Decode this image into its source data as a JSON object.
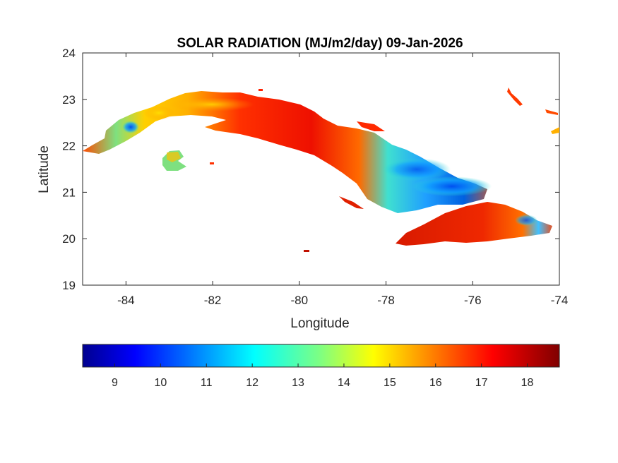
{
  "chart_data": {
    "type": "heatmap",
    "title": "SOLAR RADIATION (MJ/m2/day) 09-Jan-2026",
    "xlabel": "Longitude",
    "ylabel": "Latitude",
    "xlim": [
      -85,
      -74
    ],
    "ylim": [
      19,
      24
    ],
    "x_ticks": [
      "-84",
      "-82",
      "-80",
      "-78",
      "-76",
      "-74"
    ],
    "x_tick_values": [
      -84,
      -82,
      -80,
      -78,
      -76,
      -74
    ],
    "y_ticks": [
      "19",
      "20",
      "21",
      "22",
      "23",
      "24"
    ],
    "y_tick_values": [
      19,
      20,
      21,
      22,
      23,
      24
    ],
    "grid": false,
    "colormap": "jet",
    "colorbar": {
      "location": "bottom",
      "range": [
        8.3,
        18.7
      ],
      "ticks": [
        "9",
        "10",
        "11",
        "12",
        "13",
        "14",
        "15",
        "16",
        "17",
        "18"
      ],
      "tick_values": [
        9,
        10,
        11,
        12,
        13,
        14,
        15,
        16,
        17,
        18
      ]
    },
    "regions": [
      {
        "lon": -84.35,
        "lat": 22.45,
        "value": 11.8
      },
      {
        "lon": -84.1,
        "lat": 22.3,
        "value": 14.5
      },
      {
        "lon": -83.5,
        "lat": 22.7,
        "value": 14.0
      },
      {
        "lon": -82.9,
        "lat": 22.85,
        "value": 15.8
      },
      {
        "lon": -82.2,
        "lat": 23.0,
        "value": 16.5
      },
      {
        "lon": -81.2,
        "lat": 22.85,
        "value": 16.8
      },
      {
        "lon": -80.4,
        "lat": 22.4,
        "value": 17.5
      },
      {
        "lon": -79.6,
        "lat": 22.1,
        "value": 17.2
      },
      {
        "lon": -78.9,
        "lat": 21.8,
        "value": 16.9
      },
      {
        "lon": -78.2,
        "lat": 21.5,
        "value": 15.6
      },
      {
        "lon": -77.6,
        "lat": 21.3,
        "value": 13.2
      },
      {
        "lon": -77.0,
        "lat": 21.05,
        "value": 11.8
      },
      {
        "lon": -76.3,
        "lat": 20.95,
        "value": 10.4
      },
      {
        "lon": -82.8,
        "lat": 21.7,
        "value": 13.8
      },
      {
        "lon": -77.2,
        "lat": 20.15,
        "value": 17.8
      },
      {
        "lon": -75.8,
        "lat": 20.4,
        "value": 17.6
      },
      {
        "lon": -74.8,
        "lat": 20.3,
        "value": 12.2
      }
    ],
    "colors": {
      "axes": "#262626",
      "title": "#000000",
      "background": "#ffffff"
    }
  }
}
